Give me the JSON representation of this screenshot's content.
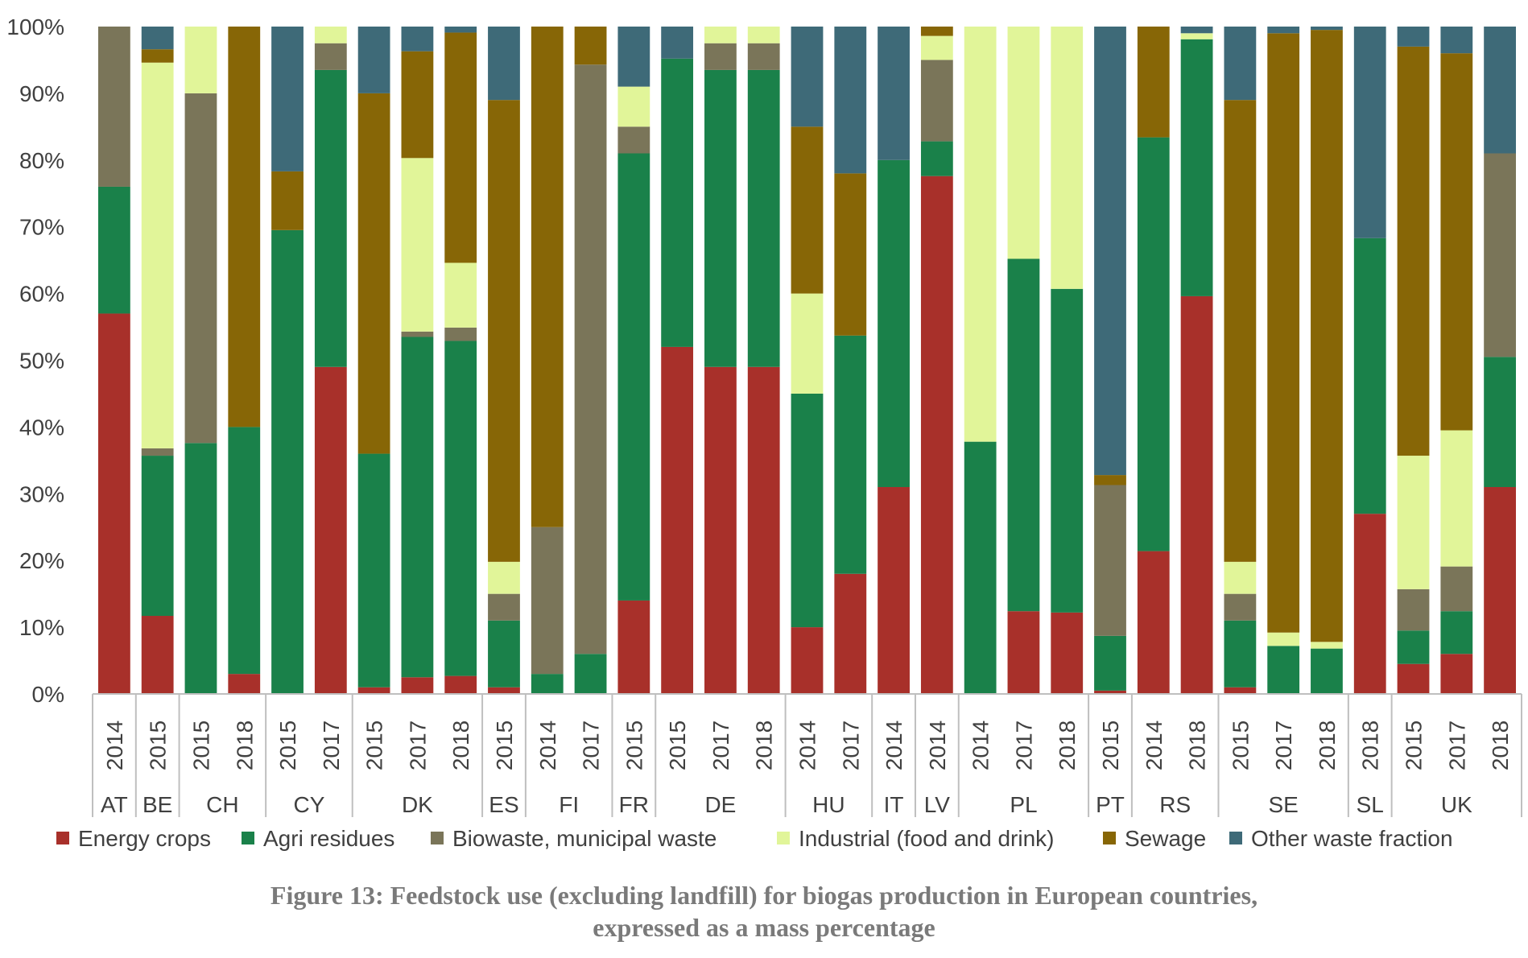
{
  "chart_data": {
    "type": "bar",
    "stacked": true,
    "grid": false,
    "legend_position": "bottom",
    "ylim": [
      0,
      100
    ],
    "y_ticks": [
      "0%",
      "10%",
      "20%",
      "30%",
      "40%",
      "50%",
      "60%",
      "70%",
      "80%",
      "90%",
      "100%"
    ],
    "categories": [
      {
        "country": "AT",
        "year": "2014"
      },
      {
        "country": "BE",
        "year": "2015"
      },
      {
        "country": "CH",
        "year": "2015"
      },
      {
        "country": "CH",
        "year": "2018"
      },
      {
        "country": "CY",
        "year": "2015"
      },
      {
        "country": "CY",
        "year": "2017"
      },
      {
        "country": "DK",
        "year": "2015"
      },
      {
        "country": "DK",
        "year": "2017"
      },
      {
        "country": "DK",
        "year": "2018"
      },
      {
        "country": "ES",
        "year": "2015"
      },
      {
        "country": "FI",
        "year": "2014"
      },
      {
        "country": "FI",
        "year": "2017"
      },
      {
        "country": "FR",
        "year": "2015"
      },
      {
        "country": "DE",
        "year": "2015"
      },
      {
        "country": "DE",
        "year": "2017"
      },
      {
        "country": "DE",
        "year": "2018"
      },
      {
        "country": "HU",
        "year": "2014"
      },
      {
        "country": "HU",
        "year": "2017"
      },
      {
        "country": "IT",
        "year": "2014"
      },
      {
        "country": "LV",
        "year": "2014"
      },
      {
        "country": "PL",
        "year": "2014"
      },
      {
        "country": "PL",
        "year": "2017"
      },
      {
        "country": "PL",
        "year": "2018"
      },
      {
        "country": "PT",
        "year": "2015"
      },
      {
        "country": "RS",
        "year": "2014"
      },
      {
        "country": "RS",
        "year": "2018"
      },
      {
        "country": "SE",
        "year": "2015"
      },
      {
        "country": "SE",
        "year": "2017"
      },
      {
        "country": "SE",
        "year": "2018"
      },
      {
        "country": "SL",
        "year": "2018"
      },
      {
        "country": "UK",
        "year": "2015"
      },
      {
        "country": "UK",
        "year": "2017"
      },
      {
        "country": "UK",
        "year": "2018"
      }
    ],
    "groups": [
      "AT",
      "BE",
      "CH",
      "CY",
      "DK",
      "ES",
      "FI",
      "FR",
      "DE",
      "HU",
      "IT",
      "LV",
      "PL",
      "PT",
      "RS",
      "SE",
      "SL",
      "UK"
    ],
    "series": [
      {
        "name": "Energy crops",
        "color": "#a8302a",
        "values": [
          57,
          11.7,
          0,
          3,
          0,
          49,
          1,
          2.5,
          2.7,
          1,
          0,
          0,
          14,
          52,
          49,
          49,
          10,
          18,
          31,
          77.6,
          0,
          12.4,
          12.2,
          0.5,
          21.4,
          59.6,
          1,
          0,
          0,
          27,
          4.5,
          6,
          31
        ]
      },
      {
        "name": "Agri residues",
        "color": "#1a814a",
        "values": [
          19,
          24,
          37.6,
          37,
          69.5,
          44.5,
          35,
          51,
          50.2,
          10,
          3,
          6,
          67,
          43.2,
          44.5,
          44.5,
          35,
          35.7,
          49,
          5.2,
          37.8,
          52.8,
          48.5,
          8.2,
          62,
          38.5,
          10,
          7.2,
          6.8,
          41.3,
          5,
          6.4,
          19.5
        ]
      },
      {
        "name": "Biowaste, municipal waste",
        "color": "#7a7559",
        "values": [
          24,
          1.1,
          52.4,
          0,
          0,
          4,
          0,
          0.8,
          2,
          4,
          22,
          88.3,
          4,
          0,
          4,
          4,
          0,
          0,
          0,
          12.2,
          0,
          0,
          0,
          22.6,
          0,
          0,
          4,
          0,
          0,
          0,
          6.2,
          6.7,
          30.5
        ]
      },
      {
        "name": "Industrial (food and drink)",
        "color": "#e1f599",
        "values": [
          0,
          57.8,
          10,
          0,
          0,
          2.5,
          0,
          26,
          9.7,
          4.8,
          0,
          0,
          6,
          0,
          2.5,
          2.5,
          15,
          0,
          0,
          3.6,
          62.2,
          34.8,
          39.3,
          0,
          0,
          0.9,
          4.8,
          2,
          1,
          0,
          20,
          20.4,
          0
        ]
      },
      {
        "name": "Sewage",
        "color": "#876606",
        "values": [
          0,
          2,
          0,
          60,
          8.8,
          0,
          54,
          16,
          34.5,
          69.2,
          75,
          5.7,
          0,
          0,
          0,
          0,
          25,
          24.3,
          0,
          1.4,
          0,
          0,
          0,
          1.5,
          16.6,
          0,
          69.2,
          89.8,
          91.7,
          0,
          61.3,
          56.5,
          0
        ]
      },
      {
        "name": "Other waste fraction",
        "color": "#3e6a78",
        "values": [
          0,
          3.4,
          0,
          0,
          21.7,
          0,
          10,
          3.7,
          0.9,
          11,
          0,
          0,
          9,
          4.8,
          0,
          0,
          15,
          22,
          20,
          0,
          0,
          0,
          0,
          67.2,
          0,
          1,
          11,
          1,
          0.5,
          31.7,
          3,
          4,
          19
        ]
      }
    ]
  },
  "caption": {
    "line1": "Figure 13: Feedstock use (excluding landfill) for biogas production in European countries,",
    "line2": "expressed as a mass percentage"
  }
}
